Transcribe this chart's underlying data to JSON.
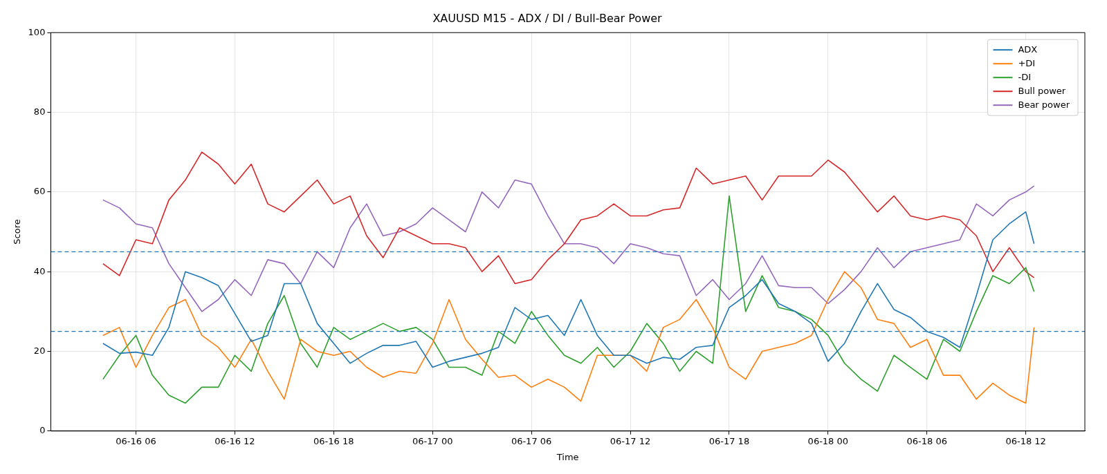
{
  "chart_data": {
    "type": "line",
    "title": "XAUUSD M15 - ADX / DI / Bull-Bear Power",
    "xlabel": "Time",
    "ylabel": "Score",
    "x": [
      "--06-16T04:00",
      "--06-16T05:00",
      "--06-16T06:00",
      "--06-16T07:00",
      "--06-16T08:00",
      "--06-16T09:00",
      "--06-16T10:00",
      "--06-16T11:00",
      "--06-16T12:00",
      "--06-16T13:00",
      "--06-16T14:00",
      "--06-16T15:00",
      "--06-16T16:00",
      "--06-16T17:00",
      "--06-16T18:00",
      "--06-16T19:00",
      "--06-16T20:00",
      "--06-16T21:00",
      "--06-16T22:00",
      "--06-16T23:00",
      "--06-17T00:00",
      "--06-17T01:00",
      "--06-17T02:00",
      "--06-17T03:00",
      "--06-17T04:00",
      "--06-17T05:00",
      "--06-17T06:00",
      "--06-17T07:00",
      "--06-17T08:00",
      "--06-17T09:00",
      "--06-17T10:00",
      "--06-17T11:00",
      "--06-17T12:00",
      "--06-17T13:00",
      "--06-17T14:00",
      "--06-17T15:00",
      "--06-17T16:00",
      "--06-17T17:00",
      "--06-17T18:00",
      "--06-17T19:00",
      "--06-17T20:00",
      "--06-17T21:00",
      "--06-17T22:00",
      "--06-17T23:00",
      "--06-18T00:00",
      "--06-18T01:00",
      "--06-18T02:00",
      "--06-18T03:00",
      "--06-18T04:00",
      "--06-18T05:00",
      "--06-18T06:00",
      "--06-18T07:00",
      "--06-18T08:00",
      "--06-18T09:00",
      "--06-18T10:00",
      "--06-18T11:00",
      "--06-18T12:00",
      "--06-18T12:30"
    ],
    "series": [
      {
        "name": "ADX",
        "color": "#1f77b4",
        "values": [
          22,
          19.5,
          19.8,
          19,
          26,
          40,
          38.5,
          36.5,
          29.5,
          22.5,
          24,
          37,
          37,
          27,
          22,
          17,
          19.5,
          21.5,
          21.5,
          22.5,
          16,
          17.5,
          18.5,
          19.5,
          21,
          31,
          28,
          29,
          24,
          33,
          24,
          19,
          19,
          17,
          18.5,
          18,
          21,
          21.5,
          31,
          34,
          38,
          32,
          30,
          27,
          17.5,
          22,
          30,
          37,
          30.5,
          28.5,
          25,
          23.5,
          21,
          34,
          48,
          52,
          55,
          47
        ]
      },
      {
        "name": "+DI",
        "color": "#ff7f0e",
        "values": [
          24,
          26,
          16,
          24,
          31,
          33,
          24,
          21,
          16,
          23,
          15,
          8,
          23,
          20,
          19,
          20,
          16,
          13.5,
          15,
          14.5,
          22,
          33,
          23,
          18,
          13.5,
          14,
          11,
          13,
          11,
          7.5,
          19,
          19,
          19,
          15,
          26,
          28,
          33,
          26,
          16,
          13,
          20,
          21,
          22,
          24,
          33,
          40,
          36,
          28,
          27,
          21,
          23,
          14,
          14,
          8,
          12,
          9,
          7,
          26
        ]
      },
      {
        "name": "-DI",
        "color": "#2ca02c",
        "values": [
          13,
          19,
          24,
          14,
          9,
          7,
          11,
          11,
          19,
          15,
          27,
          34,
          22,
          16,
          26,
          23,
          25,
          27,
          25,
          26,
          23,
          16,
          16,
          14,
          25,
          22,
          30,
          24,
          19,
          17,
          21,
          16,
          20,
          27,
          22,
          15,
          20,
          17,
          59,
          30,
          39,
          31,
          30,
          28,
          24,
          17,
          13,
          10,
          19,
          16,
          13,
          23,
          20,
          30,
          39,
          37,
          41,
          35
        ]
      },
      {
        "name": "Bull power",
        "color": "#d62728",
        "values": [
          42,
          39,
          48,
          47,
          58,
          63,
          70,
          67,
          62,
          67,
          57,
          55,
          59,
          63,
          57,
          59,
          49,
          43.5,
          51,
          49,
          47,
          47,
          46,
          40,
          44,
          37,
          38,
          43,
          47,
          53,
          54,
          57,
          54,
          54,
          55.5,
          56,
          66,
          62,
          63,
          64,
          58,
          64,
          64,
          64,
          68,
          65,
          60,
          55,
          59,
          54,
          53,
          54,
          53,
          49,
          40,
          46,
          40,
          38.5
        ]
      },
      {
        "name": "Bear power",
        "color": "#9467bd",
        "values": [
          58,
          56,
          52,
          51,
          42,
          36,
          30,
          33,
          38,
          34,
          43,
          42,
          37,
          45,
          41,
          51,
          57,
          49,
          50,
          52,
          56,
          53,
          50,
          60,
          56,
          63,
          62,
          54,
          47,
          47,
          46,
          42,
          47,
          46,
          44.5,
          44,
          34,
          38,
          33,
          37,
          44,
          36.5,
          36,
          36,
          32,
          35.5,
          40,
          46,
          41,
          45,
          46,
          47,
          48,
          57,
          54,
          58,
          60,
          61.5
        ]
      }
    ],
    "xlim": [
      "--06-16T00:50",
      "--06-18T15:35"
    ],
    "xticks": [
      {
        "value": "--06-16T06:00",
        "label": "06-16 06"
      },
      {
        "value": "--06-16T12:00",
        "label": "06-16 12"
      },
      {
        "value": "--06-16T18:00",
        "label": "06-16 18"
      },
      {
        "value": "--06-17T00:00",
        "label": "06-17 00"
      },
      {
        "value": "--06-17T06:00",
        "label": "06-17 06"
      },
      {
        "value": "--06-17T12:00",
        "label": "06-17 12"
      },
      {
        "value": "--06-17T18:00",
        "label": "06-17 18"
      },
      {
        "value": "--06-18T00:00",
        "label": "06-18 00"
      },
      {
        "value": "--06-18T06:00",
        "label": "06-18 06"
      },
      {
        "value": "--06-18T12:00",
        "label": "06-18 12"
      }
    ],
    "ylim": [
      0,
      100
    ],
    "yticks": [
      0,
      20,
      40,
      60,
      80,
      100
    ],
    "ref_lines": [
      {
        "axis": "y",
        "value": 45,
        "color": "#1f77b4",
        "line_style": "dashed"
      },
      {
        "axis": "y",
        "value": 25,
        "color": "#1f77b4",
        "line_style": "dashed"
      }
    ],
    "grid": true,
    "legend": "top right",
    "line_style": "solid",
    "marker": "none"
  }
}
